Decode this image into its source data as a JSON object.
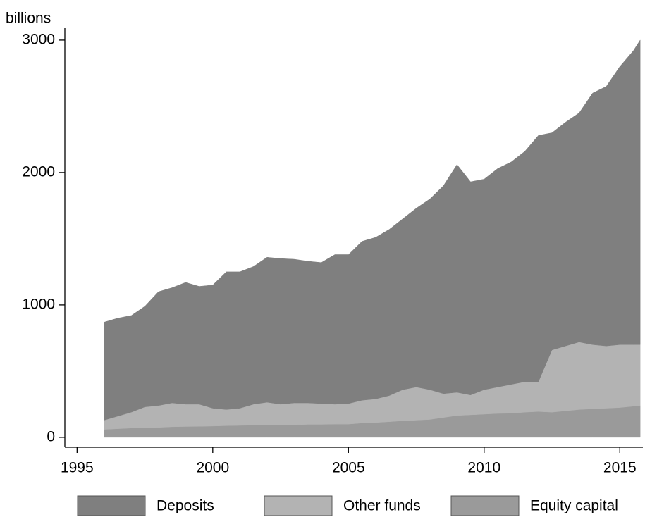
{
  "chart_data": {
    "type": "area",
    "stacked": true,
    "y_label": "billions",
    "x": [
      1996.0,
      1996.5,
      1997.0,
      1997.5,
      1998.0,
      1998.5,
      1999.0,
      1999.5,
      2000.0,
      2000.5,
      2001.0,
      2001.5,
      2002.0,
      2002.5,
      2003.0,
      2003.5,
      2004.0,
      2004.5,
      2005.0,
      2005.5,
      2006.0,
      2006.5,
      2007.0,
      2007.5,
      2008.0,
      2008.5,
      2009.0,
      2009.5,
      2010.0,
      2010.5,
      2011.0,
      2011.5,
      2012.0,
      2012.5,
      2013.0,
      2013.5,
      2014.0,
      2014.5,
      2015.0,
      2015.5,
      2015.75
    ],
    "series": [
      {
        "name": "Equity capital",
        "color": "#9a9a9a",
        "values": [
          60,
          65,
          70,
          72,
          75,
          80,
          82,
          83,
          85,
          88,
          90,
          92,
          95,
          95,
          95,
          98,
          98,
          100,
          100,
          108,
          112,
          118,
          125,
          130,
          135,
          150,
          165,
          170,
          175,
          180,
          182,
          190,
          195,
          190,
          200,
          210,
          215,
          220,
          225,
          235,
          240
        ]
      },
      {
        "name": "Other funds",
        "color": "#b3b3b3",
        "values": [
          70,
          95,
          120,
          158,
          165,
          180,
          168,
          167,
          135,
          122,
          130,
          158,
          170,
          155,
          165,
          162,
          157,
          150,
          155,
          172,
          178,
          197,
          235,
          250,
          225,
          180,
          175,
          150,
          185,
          200,
          218,
          230,
          225,
          470,
          490,
          510,
          485,
          470,
          475,
          465,
          460
        ]
      },
      {
        "name": "Deposits",
        "color": "#7f7f7f",
        "values": [
          740,
          740,
          730,
          760,
          860,
          870,
          920,
          890,
          930,
          1040,
          1030,
          1040,
          1095,
          1100,
          1085,
          1070,
          1065,
          1130,
          1125,
          1200,
          1220,
          1255,
          1290,
          1350,
          1440,
          1570,
          1720,
          1610,
          1590,
          1650,
          1680,
          1740,
          1860,
          1640,
          1690,
          1730,
          1900,
          1960,
          2100,
          2220,
          2300
        ]
      }
    ],
    "legend_order": [
      "Deposits",
      "Other funds",
      "Equity capital"
    ],
    "xlim": [
      1994.55,
      2015.85
    ],
    "xticks": [
      1995,
      2000,
      2005,
      2010,
      2015
    ],
    "ylim": [
      -75,
      3090
    ],
    "yticks": [
      0,
      1000,
      2000,
      3000
    ],
    "grid": false,
    "legend": "bottom"
  }
}
